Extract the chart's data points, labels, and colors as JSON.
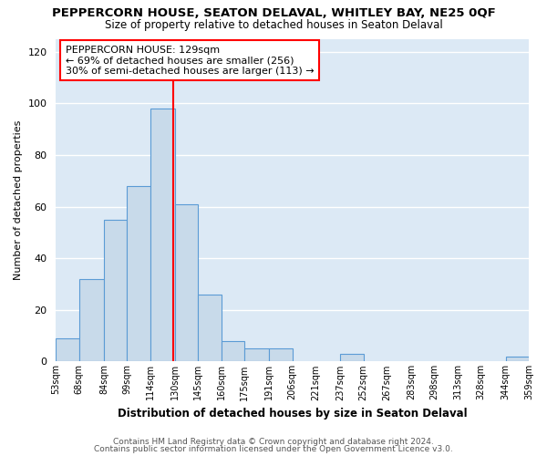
{
  "title": "PEPPERCORN HOUSE, SEATON DELAVAL, WHITLEY BAY, NE25 0QF",
  "subtitle": "Size of property relative to detached houses in Seaton Delaval",
  "xlabel": "Distribution of detached houses by size in Seaton Delaval",
  "ylabel": "Number of detached properties",
  "footnote1": "Contains HM Land Registry data © Crown copyright and database right 2024.",
  "footnote2": "Contains public sector information licensed under the Open Government Licence v3.0.",
  "bar_lefts": [
    53,
    68,
    84,
    99,
    114,
    130,
    145,
    160,
    175,
    191,
    206,
    221,
    237,
    252,
    267,
    283,
    298,
    313,
    328,
    344
  ],
  "bar_widths": [
    15,
    16,
    15,
    15,
    16,
    15,
    15,
    15,
    16,
    15,
    15,
    16,
    15,
    15,
    16,
    15,
    15,
    15,
    16,
    15
  ],
  "bar_heights": [
    9,
    32,
    55,
    68,
    98,
    61,
    26,
    8,
    5,
    5,
    0,
    0,
    3,
    0,
    0,
    0,
    0,
    0,
    0,
    2
  ],
  "tick_labels": [
    "53sqm",
    "68sqm",
    "84sqm",
    "99sqm",
    "114sqm",
    "130sqm",
    "145sqm",
    "160sqm",
    "175sqm",
    "191sqm",
    "206sqm",
    "221sqm",
    "237sqm",
    "252sqm",
    "267sqm",
    "283sqm",
    "298sqm",
    "313sqm",
    "328sqm",
    "344sqm",
    "359sqm"
  ],
  "bar_color": "#c8daea",
  "bar_edge_color": "#5b9bd5",
  "property_line_x": 129,
  "annotation_text_line1": "PEPPERCORN HOUSE: 129sqm",
  "annotation_text_line2": "← 69% of detached houses are smaller (256)",
  "annotation_text_line3": "30% of semi-detached houses are larger (113) →",
  "ylim": [
    0,
    125
  ],
  "yticks": [
    0,
    20,
    40,
    60,
    80,
    100,
    120
  ],
  "fig_bg_color": "#ffffff",
  "ax_bg_color": "#dce9f5",
  "grid_color": "#ffffff",
  "title_fontsize": 9.5,
  "subtitle_fontsize": 8.5,
  "ylabel_fontsize": 8,
  "xlabel_fontsize": 8.5,
  "tick_fontsize": 7,
  "annotation_fontsize": 8,
  "footnote_fontsize": 6.5
}
